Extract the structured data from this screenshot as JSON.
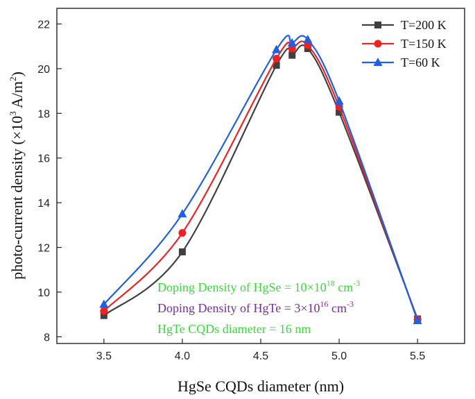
{
  "chart_data": {
    "type": "line",
    "xlabel": "HgSe CQDs diameter (nm)",
    "ylabel_main": "photo-current density (×10",
    "ylabel_exp": "3",
    "ylabel_unit": " A/m",
    "ylabel_unit_exp": "2",
    "ylabel_close": ")",
    "xlim": [
      3.2,
      5.8
    ],
    "ylim": [
      7.7,
      22.7
    ],
    "x_ticks": [
      3.5,
      4.0,
      4.5,
      5.0,
      5.5
    ],
    "x_tick_labels": [
      "3.5",
      "4.0",
      "4.5",
      "5.0",
      "5.5"
    ],
    "y_ticks": [
      8,
      10,
      12,
      14,
      16,
      18,
      20,
      22
    ],
    "y_tick_labels": [
      "8",
      "10",
      "12",
      "14",
      "16",
      "18",
      "20",
      "22"
    ],
    "grid": false,
    "legend_position": "top-right",
    "series": [
      {
        "name": "T=200 K",
        "color": "#404040",
        "marker": "square",
        "x": [
          3.5,
          4.0,
          4.6,
          4.7,
          4.8,
          5.0,
          5.5
        ],
        "values": [
          8.95,
          11.8,
          20.15,
          20.6,
          20.9,
          18.05,
          8.8
        ]
      },
      {
        "name": "T=150 K",
        "color": "#ee2222",
        "marker": "circle",
        "x": [
          3.5,
          4.0,
          4.6,
          4.7,
          4.8,
          5.0,
          5.5
        ],
        "values": [
          9.15,
          12.65,
          20.45,
          20.9,
          21.05,
          18.3,
          8.78
        ]
      },
      {
        "name": "T=60 K",
        "color": "#1f5fe0",
        "marker": "triangle",
        "x": [
          3.5,
          4.0,
          4.6,
          4.7,
          4.8,
          5.0,
          5.5
        ],
        "values": [
          9.45,
          13.5,
          20.85,
          21.15,
          21.3,
          18.55,
          8.72
        ]
      }
    ],
    "annotations": [
      {
        "base": "Doping Density of HgSe = 10×10",
        "sup": "18",
        "tail": " cm",
        "tail_sup": "-3",
        "color": "#33dd33"
      },
      {
        "base": "Doping Density of HgTe = 3×10",
        "sup": "16",
        "tail": " cm",
        "tail_sup": "-3",
        "color": "#7a2aa0"
      },
      {
        "base": "HgTe CQDs diameter = 16 nm",
        "sup": "",
        "tail": "",
        "tail_sup": "",
        "color": "#33dd33"
      }
    ]
  }
}
